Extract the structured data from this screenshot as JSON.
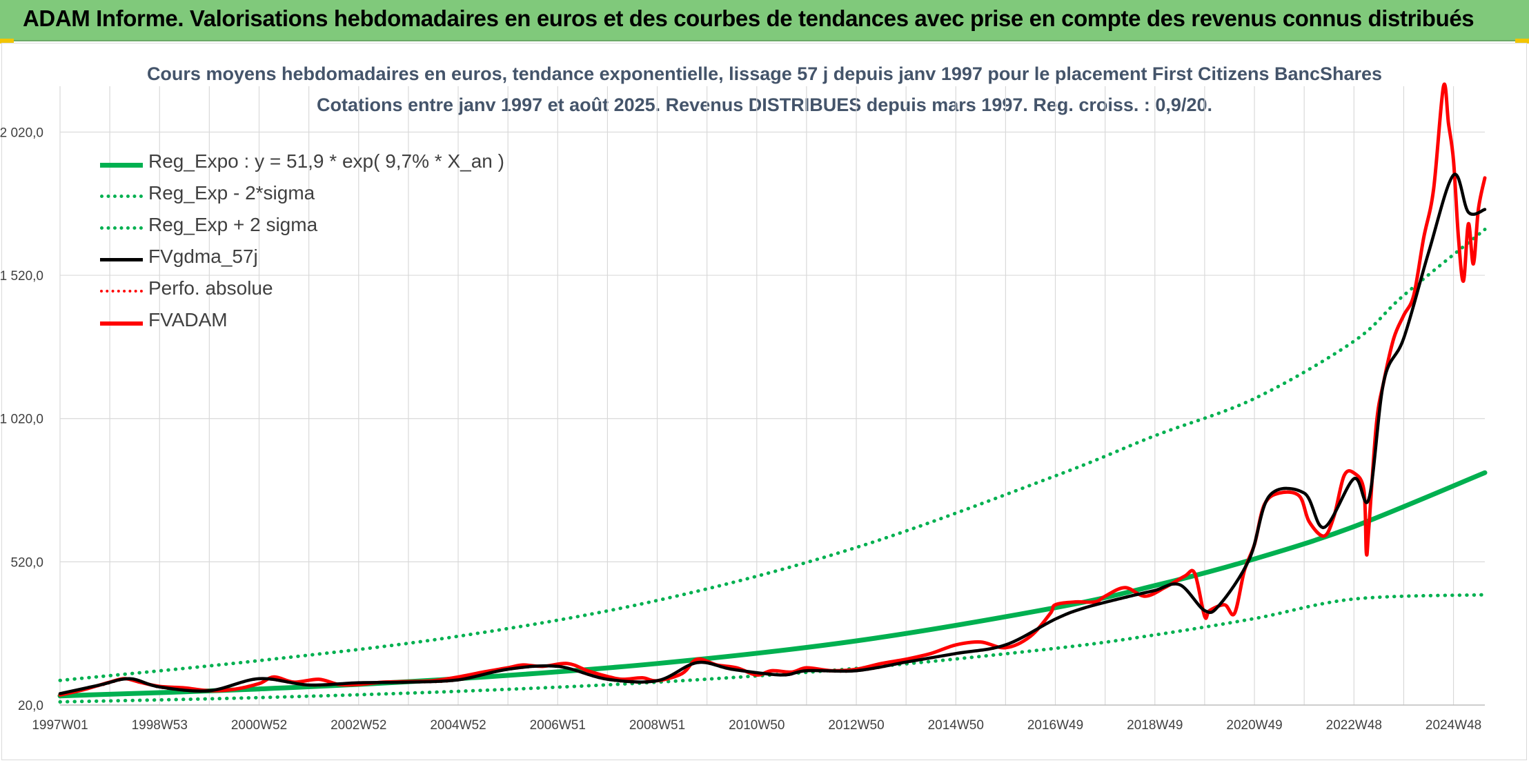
{
  "banner": {
    "title": "ADAM Informe. Valorisations hebdomadaires en euros et des courbes de tendances avec prise en compte des revenus connus distribués"
  },
  "colors": {
    "banner_bg": "#80c97b",
    "reg_expo": "#00b050",
    "fvgdma": "#000000",
    "fvadam": "#ff0000",
    "perfo": "#ff0000",
    "title_text": "#44546a",
    "grid": "#d9d9d9"
  },
  "chart_data": {
    "type": "line",
    "title_line1": "Cours moyens hebdomadaires en euros, tendance exponentielle, lissage 57 j depuis janv 1997 pour le placement First Citizens BancShares",
    "title_line2": "Cotations entre janv 1997 et août 2025. Revenus DISTRIBUES depuis mars 1997. Reg. croiss. : 0,9/20.",
    "ylim": [
      20,
      2180
    ],
    "y_ticks": [
      {
        "value": 20,
        "label": "20,0"
      },
      {
        "value": 520,
        "label": "520,0"
      },
      {
        "value": 1020,
        "label": "1 020,0"
      },
      {
        "value": 1520,
        "label": "1 520,0"
      },
      {
        "value": 2020,
        "label": "2 020,0"
      }
    ],
    "xlim": [
      1997.0,
      2025.63
    ],
    "x_ticks": [
      {
        "value": 1997.0,
        "label": "1997W01"
      },
      {
        "value": 1999.0,
        "label": "1998W53"
      },
      {
        "value": 2001.0,
        "label": "2000W52"
      },
      {
        "value": 2003.0,
        "label": "2002W52"
      },
      {
        "value": 2005.0,
        "label": "2004W52"
      },
      {
        "value": 2007.0,
        "label": "2006W51"
      },
      {
        "value": 2009.0,
        "label": "2008W51"
      },
      {
        "value": 2011.0,
        "label": "2010W50"
      },
      {
        "value": 2013.0,
        "label": "2012W50"
      },
      {
        "value": 2015.0,
        "label": "2014W50"
      },
      {
        "value": 2017.0,
        "label": "2016W49"
      },
      {
        "value": 2019.0,
        "label": "2018W49"
      },
      {
        "value": 2021.0,
        "label": "2020W49"
      },
      {
        "value": 2023.0,
        "label": "2022W48"
      },
      {
        "value": 2025.0,
        "label": "2024W48"
      }
    ],
    "x_grid_step": 1,
    "grid": true,
    "legend_position": "top-left",
    "series": [
      {
        "name": "Reg_Expo : y = 51,9 * exp( 9,7% *  X_an )",
        "color": "#00b050",
        "style": "solid",
        "x": [
          1997,
          2001,
          2005,
          2009,
          2013,
          2017,
          2019,
          2021,
          2023,
          2025.63
        ],
        "y": [
          52,
          76,
          112,
          165,
          244,
          360,
          437,
          530,
          643,
          831
        ]
      },
      {
        "name": "Reg_Exp - 2*sigma",
        "color": "#00b050",
        "style": "dotted",
        "x": [
          1997,
          2001,
          2005,
          2009,
          2013,
          2017,
          2019,
          2021,
          2023,
          2025.63
        ],
        "y": [
          31,
          46,
          68,
          100,
          148,
          218,
          265,
          322,
          390,
          405
        ]
      },
      {
        "name": "Reg_Exp + 2 sigma",
        "color": "#00b050",
        "style": "dotted",
        "x": [
          1997,
          2001,
          2005,
          2009,
          2013,
          2017,
          2019,
          2021,
          2023,
          2024,
          2025.63
        ],
        "y": [
          106,
          175,
          260,
          385,
          570,
          820,
          960,
          1090,
          1290,
          1450,
          1680
        ]
      },
      {
        "name": "FVgdma_57j",
        "color": "#000000",
        "style": "solid",
        "x": [
          1997.0,
          1997.8,
          1998.4,
          1999.0,
          2000.0,
          2001.0,
          2002.0,
          2003.0,
          2004.0,
          2005.0,
          2006.0,
          2007.0,
          2008.0,
          2009.0,
          2009.8,
          2010.5,
          2011.5,
          2012.0,
          2013.0,
          2014.0,
          2015.0,
          2016.0,
          2017.0,
          2017.6,
          2018.5,
          2019.0,
          2019.5,
          2020.0,
          2020.3,
          2020.9,
          2021.3,
          2022.0,
          2022.4,
          2023.0,
          2023.3,
          2023.6,
          2024.0,
          2024.5,
          2025.0,
          2025.3,
          2025.63
        ],
        "y": [
          60,
          90,
          112,
          83,
          70,
          112,
          90,
          98,
          100,
          108,
          145,
          155,
          110,
          105,
          168,
          145,
          125,
          140,
          140,
          170,
          200,
          230,
          320,
          360,
          400,
          420,
          440,
          350,
          370,
          530,
          750,
          760,
          640,
          810,
          740,
          1150,
          1300,
          1600,
          1870,
          1740,
          1750
        ]
      },
      {
        "name": "Perfo. absolue",
        "color": "#ff0000",
        "style": "dotted",
        "x": [
          1997.0,
          1997.8,
          1998.4,
          1999.0,
          2000.0,
          2001.0,
          2002.0,
          2003.0,
          2004.0,
          2005.0,
          2006.0,
          2007.0,
          2008.0,
          2009.0,
          2009.8,
          2010.5,
          2011.5,
          2012.0,
          2013.0,
          2014.0,
          2015.0,
          2016.0,
          2017.0,
          2017.6,
          2018.5,
          2019.0,
          2019.5,
          2020.0,
          2020.3,
          2020.9,
          2021.3,
          2022.0,
          2022.4,
          2023.0,
          2023.3,
          2023.6,
          2024.0,
          2024.5,
          2025.0,
          2025.3,
          2025.63
        ],
        "y": [
          57,
          87,
          110,
          81,
          68,
          110,
          88,
          96,
          98,
          106,
          143,
          153,
          108,
          103,
          166,
          143,
          123,
          138,
          138,
          168,
          198,
          228,
          318,
          358,
          398,
          418,
          438,
          348,
          368,
          528,
          748,
          758,
          638,
          808,
          738,
          1148,
          1298,
          1598,
          1868,
          1738,
          1748
        ]
      },
      {
        "name": "FVADAM",
        "color": "#ff0000",
        "style": "solid",
        "x": [
          1997.0,
          1997.5,
          1998.0,
          1998.3,
          1998.6,
          1999.0,
          1999.5,
          2000.0,
          2000.5,
          2001.0,
          2001.3,
          2001.7,
          2002.2,
          2002.6,
          2003.0,
          2003.5,
          2004.0,
          2004.5,
          2005.0,
          2005.5,
          2006.0,
          2006.3,
          2006.7,
          2007.2,
          2007.6,
          2008.0,
          2008.3,
          2008.7,
          2009.0,
          2009.5,
          2009.8,
          2010.2,
          2010.6,
          2011.0,
          2011.3,
          2011.7,
          2012.0,
          2012.5,
          2013.0,
          2013.5,
          2014.0,
          2014.5,
          2015.0,
          2015.5,
          2016.0,
          2016.5,
          2016.9,
          2017.0,
          2017.4,
          2017.8,
          2018.0,
          2018.4,
          2018.8,
          2019.2,
          2019.6,
          2019.8,
          2020.0,
          2020.1,
          2020.4,
          2020.6,
          2020.8,
          2021.0,
          2021.2,
          2021.5,
          2021.9,
          2022.1,
          2022.4,
          2022.6,
          2022.8,
          2023.0,
          2023.2,
          2023.25,
          2023.3,
          2023.45,
          2023.6,
          2023.8,
          2024.0,
          2024.2,
          2024.4,
          2024.6,
          2024.8,
          2024.9,
          2025.0,
          2025.1,
          2025.2,
          2025.3,
          2025.4,
          2025.5,
          2025.63
        ],
        "y": [
          55,
          75,
          100,
          112,
          100,
          85,
          80,
          70,
          75,
          95,
          118,
          100,
          110,
          92,
          92,
          100,
          102,
          105,
          118,
          135,
          150,
          160,
          155,
          165,
          140,
          120,
          110,
          115,
          105,
          130,
          180,
          160,
          150,
          125,
          140,
          135,
          150,
          140,
          145,
          165,
          180,
          200,
          230,
          240,
          220,
          260,
          340,
          370,
          380,
          380,
          400,
          430,
          400,
          430,
          470,
          480,
          330,
          350,
          370,
          340,
          490,
          580,
          720,
          760,
          750,
          660,
          610,
          680,
          820,
          830,
          770,
          550,
          640,
          1000,
          1150,
          1300,
          1380,
          1450,
          1650,
          1820,
          2180,
          2050,
          1920,
          1650,
          1500,
          1700,
          1560,
          1750,
          1860
        ]
      }
    ]
  }
}
